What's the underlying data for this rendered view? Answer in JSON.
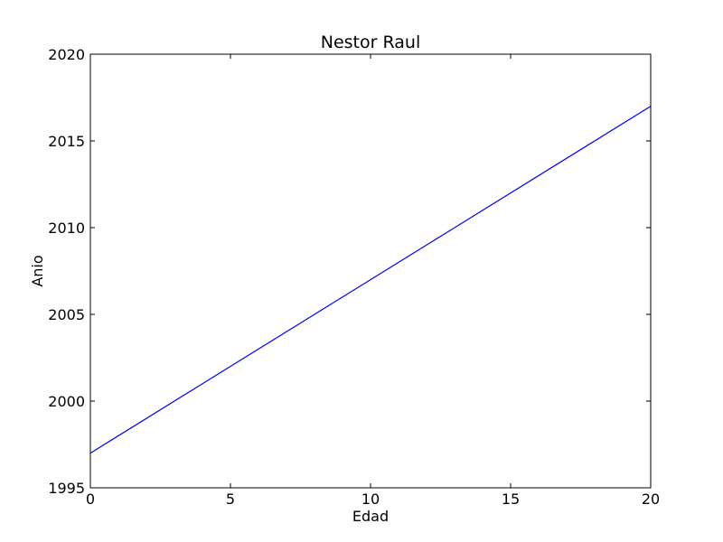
{
  "chart_data": {
    "type": "line",
    "title": "Nestor Raul",
    "xlabel": "Edad",
    "ylabel": "Anio",
    "xlim": [
      0,
      20
    ],
    "ylim": [
      1995,
      2020
    ],
    "xticks": [
      0,
      5,
      10,
      15,
      20
    ],
    "xtick_labels": [
      "0",
      "5",
      "10",
      "15",
      "20"
    ],
    "yticks": [
      1995,
      2000,
      2005,
      2010,
      2015,
      2020
    ],
    "ytick_labels": [
      "1995",
      "2000",
      "2005",
      "2010",
      "2015",
      "2020"
    ],
    "grid": false,
    "series": [
      {
        "color": "#0000ff",
        "x": [
          0,
          20
        ],
        "y": [
          1997,
          2017
        ]
      }
    ]
  }
}
